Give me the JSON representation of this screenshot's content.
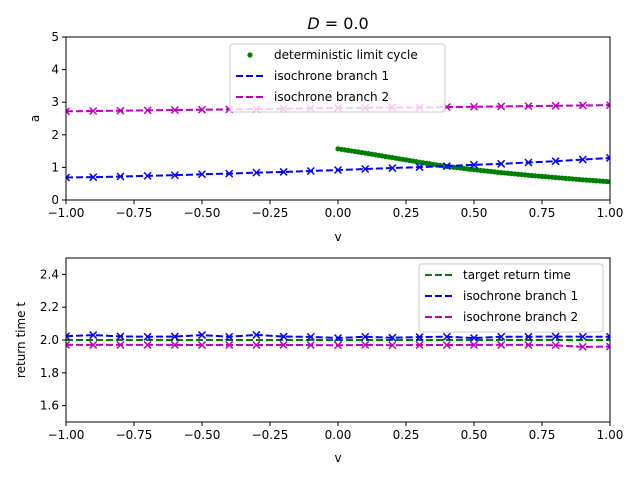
{
  "chart_data": [
    {
      "type": "line",
      "title": "D = 0.0",
      "title_parts": {
        "var": "D",
        "rest": " = 0.0"
      },
      "xlabel": "v",
      "ylabel": "a",
      "xlim": [
        -1.0,
        1.0
      ],
      "ylim": [
        0,
        5
      ],
      "xticks": [
        "−1.00",
        "−0.75",
        "−0.50",
        "−0.25",
        "0.00",
        "0.25",
        "0.50",
        "0.75",
        "1.00"
      ],
      "yticks": [
        "0",
        "1",
        "2",
        "3",
        "4",
        "5"
      ],
      "legend": "top-center",
      "series": [
        {
          "name": "deterministic limit cycle",
          "style": "dots",
          "color": "#008000",
          "x": [
            0.0,
            0.1,
            0.2,
            0.3,
            0.4,
            0.5,
            0.6,
            0.7,
            0.8,
            0.9,
            1.0
          ],
          "y": [
            1.57,
            1.44,
            1.3,
            1.16,
            1.03,
            0.93,
            0.84,
            0.76,
            0.69,
            0.62,
            0.56
          ]
        },
        {
          "name": "isochrone branch 1",
          "style": "dashed",
          "color": "#0000ff",
          "x": [
            -1.0,
            -0.9,
            -0.8,
            -0.7,
            -0.6,
            -0.5,
            -0.4,
            -0.3,
            -0.2,
            -0.1,
            0.0,
            0.1,
            0.2,
            0.3,
            0.4,
            0.5,
            0.6,
            0.7,
            0.8,
            0.9,
            1.0
          ],
          "y": [
            0.69,
            0.7,
            0.72,
            0.74,
            0.76,
            0.79,
            0.81,
            0.84,
            0.86,
            0.89,
            0.92,
            0.95,
            0.98,
            1.01,
            1.04,
            1.08,
            1.11,
            1.15,
            1.19,
            1.24,
            1.29
          ]
        },
        {
          "name": "isochrone branch 2",
          "style": "dashed",
          "color": "#bf00bf",
          "x": [
            -1.0,
            -0.9,
            -0.8,
            -0.7,
            -0.6,
            -0.5,
            -0.4,
            -0.3,
            -0.2,
            -0.1,
            0.0,
            0.1,
            0.2,
            0.3,
            0.4,
            0.5,
            0.6,
            0.7,
            0.8,
            0.9,
            1.0
          ],
          "y": [
            2.72,
            2.73,
            2.74,
            2.75,
            2.76,
            2.77,
            2.78,
            2.79,
            2.8,
            2.81,
            2.82,
            2.83,
            2.84,
            2.84,
            2.85,
            2.86,
            2.87,
            2.88,
            2.89,
            2.9,
            2.91
          ]
        }
      ]
    },
    {
      "type": "line",
      "xlabel": "v",
      "ylabel": "return time t",
      "xlim": [
        -1.0,
        1.0
      ],
      "ylim": [
        1.5,
        2.5
      ],
      "xticks": [
        "−1.00",
        "−0.75",
        "−0.50",
        "−0.25",
        "0.00",
        "0.25",
        "0.50",
        "0.75",
        "1.00"
      ],
      "yticks": [
        "1.6",
        "1.8",
        "2.0",
        "2.2",
        "2.4"
      ],
      "legend": "top-right",
      "series": [
        {
          "name": "target return time",
          "style": "dashed",
          "color": "#008000",
          "x": [
            -1.0,
            1.0
          ],
          "y": [
            2.0,
            2.0
          ]
        },
        {
          "name": "isochrone branch 1",
          "style": "dashed",
          "color": "#0000ff",
          "x": [
            -1.0,
            -0.9,
            -0.8,
            -0.7,
            -0.6,
            -0.5,
            -0.4,
            -0.3,
            -0.2,
            -0.1,
            0.0,
            0.1,
            0.2,
            0.3,
            0.4,
            0.5,
            0.6,
            0.7,
            0.8,
            0.9,
            1.0
          ],
          "y": [
            2.023,
            2.03,
            2.022,
            2.02,
            2.021,
            2.03,
            2.02,
            2.031,
            2.021,
            2.019,
            2.012,
            2.02,
            2.014,
            2.018,
            2.02,
            2.012,
            2.02,
            2.02,
            2.021,
            2.02,
            2.02
          ]
        },
        {
          "name": "isochrone branch 2",
          "style": "dashed",
          "color": "#bf00bf",
          "x": [
            -1.0,
            -0.9,
            -0.8,
            -0.7,
            -0.6,
            -0.5,
            -0.4,
            -0.3,
            -0.2,
            -0.1,
            0.0,
            0.1,
            0.2,
            0.3,
            0.4,
            0.5,
            0.6,
            0.7,
            0.8,
            0.9,
            1.0
          ],
          "y": [
            1.97,
            1.97,
            1.97,
            1.97,
            1.97,
            1.969,
            1.97,
            1.969,
            1.97,
            1.969,
            1.968,
            1.97,
            1.968,
            1.97,
            1.969,
            1.97,
            1.97,
            1.97,
            1.968,
            1.958,
            1.96
          ]
        }
      ]
    }
  ]
}
